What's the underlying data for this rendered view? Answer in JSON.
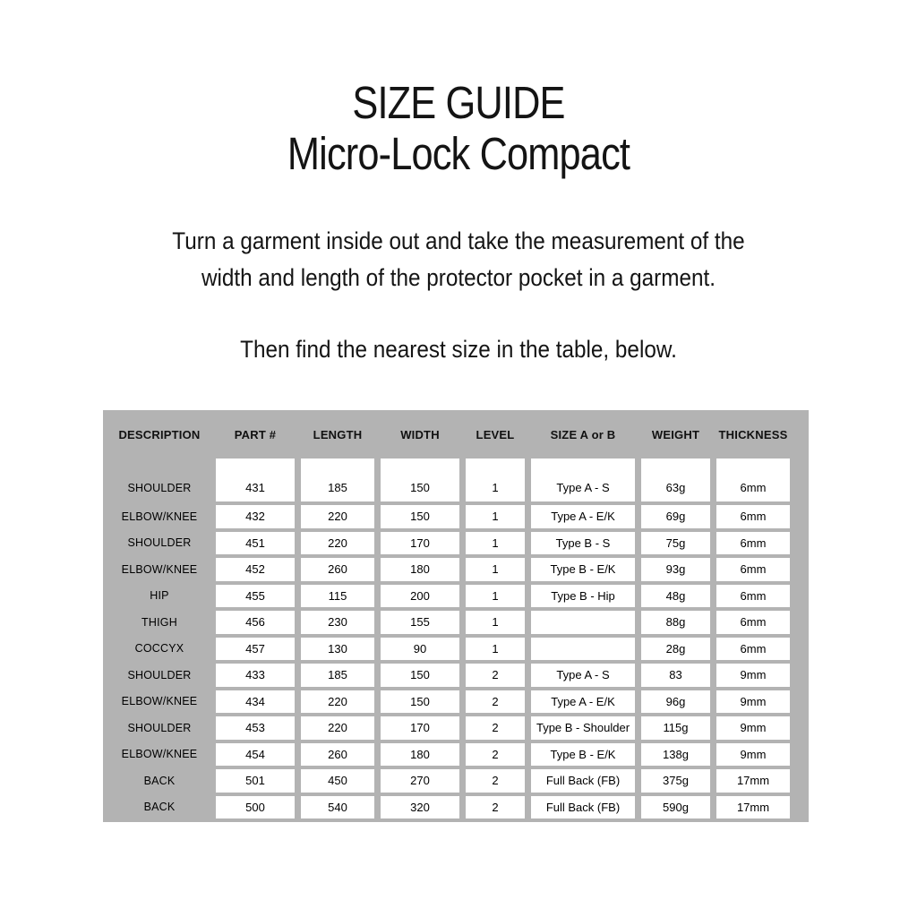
{
  "page": {
    "title_line1": "SIZE GUIDE",
    "title_line2": "Micro-Lock Compact",
    "instruction_line1": "Turn a garment inside out and take the measurement of the",
    "instruction_line2": "width and length of the protector pocket in a garment.",
    "instruction_line3": "Then find the nearest size in the table, below."
  },
  "colors": {
    "table_gray": "#b3b3b3",
    "cell_white": "#ffffff"
  },
  "table": {
    "columns": [
      "DESCRIPTION",
      "PART #",
      "LENGTH",
      "WIDTH",
      "LEVEL",
      "SIZE A or B",
      "WEIGHT",
      "THICKNESS"
    ],
    "rows": [
      [
        "SHOULDER",
        "431",
        "185",
        "150",
        "1",
        "Type A - S",
        "63g",
        "6mm"
      ],
      [
        "ELBOW/KNEE",
        "432",
        "220",
        "150",
        "1",
        "Type A - E/K",
        "69g",
        "6mm"
      ],
      [
        "SHOULDER",
        "451",
        "220",
        "170",
        "1",
        "Type B - S",
        "75g",
        "6mm"
      ],
      [
        "ELBOW/KNEE",
        "452",
        "260",
        "180",
        "1",
        "Type B - E/K",
        "93g",
        "6mm"
      ],
      [
        "HIP",
        "455",
        "115",
        "200",
        "1",
        "Type B - Hip",
        "48g",
        "6mm"
      ],
      [
        "THIGH",
        "456",
        "230",
        "155",
        "1",
        "",
        "88g",
        "6mm"
      ],
      [
        "COCCYX",
        "457",
        "130",
        "90",
        "1",
        "",
        "28g",
        "6mm"
      ],
      [
        "SHOULDER",
        "433",
        "185",
        "150",
        "2",
        "Type A - S",
        "83",
        "9mm"
      ],
      [
        "ELBOW/KNEE",
        "434",
        "220",
        "150",
        "2",
        "Type A - E/K",
        "96g",
        "9mm"
      ],
      [
        "SHOULDER",
        "453",
        "220",
        "170",
        "2",
        "Type B - Shoulder",
        "115g",
        "9mm"
      ],
      [
        "ELBOW/KNEE",
        "454",
        "260",
        "180",
        "2",
        "Type B - E/K",
        "138g",
        "9mm"
      ],
      [
        "BACK",
        "501",
        "450",
        "270",
        "2",
        "Full Back (FB)",
        "375g",
        "17mm"
      ],
      [
        "BACK",
        "500",
        "540",
        "320",
        "2",
        "Full Back (FB)",
        "590g",
        "17mm"
      ]
    ]
  }
}
